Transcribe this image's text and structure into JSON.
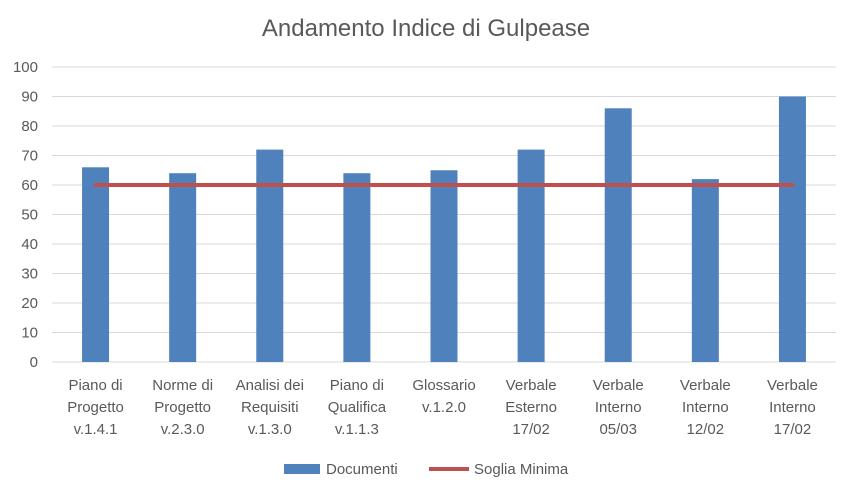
{
  "chart_data": {
    "type": "bar",
    "title": "Andamento Indice di Gulpease",
    "xlabel": "",
    "ylabel": "",
    "ylim": [
      0,
      100
    ],
    "yticks": [
      0,
      10,
      20,
      30,
      40,
      50,
      60,
      70,
      80,
      90,
      100
    ],
    "grid": true,
    "legend_position": "bottom",
    "categories": [
      [
        "Piano di",
        "Progetto",
        "v.1.4.1"
      ],
      [
        "Norme di",
        "Progetto",
        "v.2.3.0"
      ],
      [
        "Analisi dei",
        "Requisiti",
        "v.1.3.0"
      ],
      [
        "Piano di",
        "Qualifica",
        "v.1.1.3"
      ],
      [
        "Glossario",
        "v.1.2.0"
      ],
      [
        "Verbale",
        "Esterno",
        "17/02"
      ],
      [
        "Verbale",
        "Interno",
        "05/03"
      ],
      [
        "Verbale",
        "Interno",
        "12/02"
      ],
      [
        "Verbale",
        "Interno",
        "17/02"
      ]
    ],
    "series": [
      {
        "name": "Documenti",
        "type": "bar",
        "color": "#4f81bd",
        "values": [
          66,
          64,
          72,
          64,
          65,
          72,
          86,
          62,
          90
        ]
      },
      {
        "name": "Soglia Minima",
        "type": "line",
        "color": "#c0504d",
        "values": [
          60,
          60,
          60,
          60,
          60,
          60,
          60,
          60,
          60
        ]
      }
    ]
  }
}
